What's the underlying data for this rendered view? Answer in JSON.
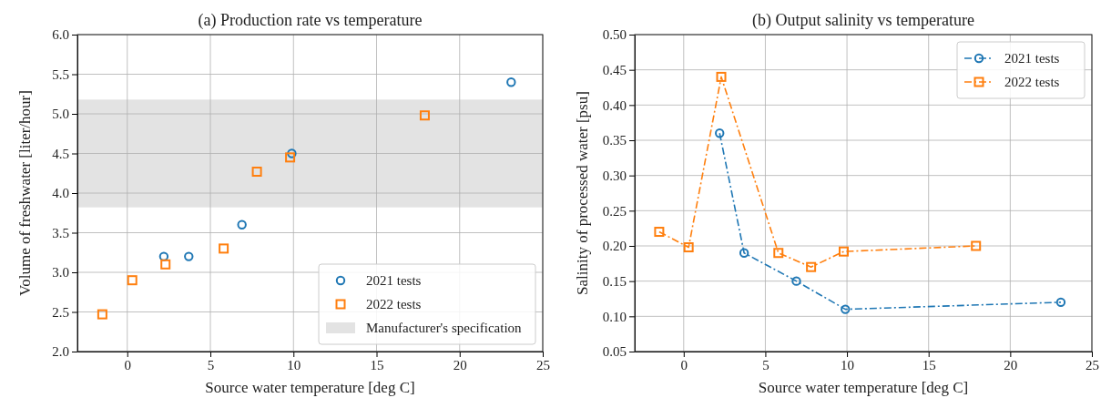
{
  "chart_data": [
    {
      "type": "scatter",
      "title": "(a) Production rate vs temperature",
      "xlabel": "Source water temperature [deg C]",
      "ylabel": "Volume of freshwater [liter/hour]",
      "xlim": [
        -3,
        25
      ],
      "xticks": [
        0,
        5,
        10,
        15,
        20,
        25
      ],
      "ylim": [
        2.0,
        6.0
      ],
      "yticks": [
        {
          "value": 2.0,
          "label": "2.0"
        },
        {
          "value": 2.5,
          "label": "2.5"
        },
        {
          "value": 3.0,
          "label": "3.0"
        },
        {
          "value": 3.5,
          "label": "3.5"
        },
        {
          "value": 4.0,
          "label": "4.0"
        },
        {
          "value": 4.5,
          "label": "4.5"
        },
        {
          "value": 5.0,
          "label": "5.0"
        },
        {
          "value": 5.5,
          "label": "5.5"
        },
        {
          "value": 6.0,
          "label": "6.0"
        }
      ],
      "grid": true,
      "legend": "bottom right",
      "series": [
        {
          "name": "2021 tests",
          "color": "#1f77b4",
          "marker": "circle",
          "x": [
            2.2,
            3.7,
            6.9,
            9.9,
            23.1
          ],
          "values": [
            3.2,
            3.2,
            3.6,
            4.5,
            5.4
          ]
        },
        {
          "name": "2022 tests",
          "color": "#ff7f0e",
          "marker": "square",
          "x": [
            -1.5,
            0.3,
            2.3,
            5.8,
            7.8,
            9.8,
            17.9
          ],
          "values": [
            2.47,
            2.9,
            3.1,
            3.3,
            4.27,
            4.45,
            4.98
          ]
        }
      ],
      "bands": [
        {
          "axis": "y",
          "from": 3.82,
          "to": 5.18,
          "label": "Manufacturer's specification",
          "color": "#e3e3e3"
        }
      ]
    },
    {
      "type": "line",
      "title": "(b) Output salinity vs temperature",
      "xlabel": "Source water temperature [deg C]",
      "ylabel": "Salinity of processed water [psu]",
      "xlim": [
        -3,
        25
      ],
      "xticks": [
        0,
        5,
        10,
        15,
        20,
        25
      ],
      "ylim": [
        0.05,
        0.5
      ],
      "yticks": [
        0.05,
        {
          "value": 0.1,
          "label": "0.10"
        },
        0.15,
        {
          "value": 0.2,
          "label": "0.20"
        },
        0.25,
        {
          "value": 0.3,
          "label": "0.30"
        },
        0.35,
        {
          "value": 0.4,
          "label": "0.40"
        },
        0.45,
        {
          "value": 0.5,
          "label": "0.50"
        }
      ],
      "grid": true,
      "legend": "top right",
      "line_style": "dashed",
      "series": [
        {
          "name": "2021 tests",
          "color": "#1f77b4",
          "marker": "circle",
          "x": [
            2.2,
            3.7,
            6.9,
            9.9,
            23.1
          ],
          "values": [
            0.36,
            0.19,
            0.15,
            0.11,
            0.12
          ]
        },
        {
          "name": "2022 tests",
          "color": "#ff7f0e",
          "marker": "square",
          "x": [
            -1.5,
            0.3,
            2.3,
            5.8,
            7.8,
            9.8,
            17.9
          ],
          "values": [
            0.22,
            0.198,
            0.44,
            0.19,
            0.17,
            0.192,
            0.2
          ]
        }
      ]
    }
  ]
}
